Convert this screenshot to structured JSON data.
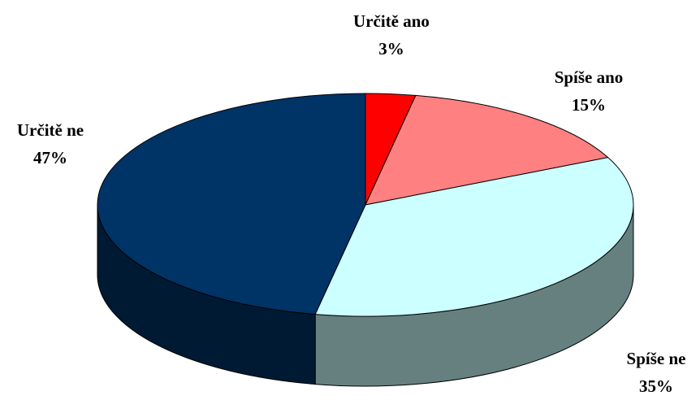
{
  "chart_data": {
    "type": "pie3d",
    "categories": [
      "Určitě ano",
      "Spíše ano",
      "Spíše ne",
      "Určitě ne"
    ],
    "values": [
      3,
      15,
      35,
      47
    ],
    "value_labels": [
      "3%",
      "15%",
      "35%",
      "47%"
    ],
    "colors": [
      "#ff0000",
      "#ff8080",
      "#ccffff",
      "#003366"
    ]
  }
}
